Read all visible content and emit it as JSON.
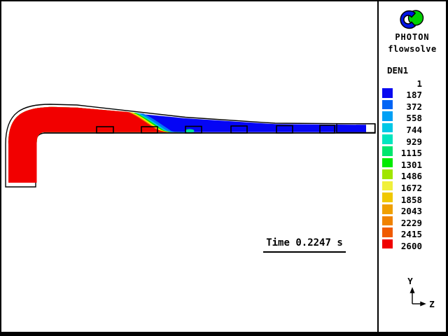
{
  "brand": {
    "line1": "PHOTON",
    "line2": "flowsolve"
  },
  "legend": {
    "title": "DEN1",
    "values": [
      "1",
      "187",
      "372",
      "558",
      "744",
      "929",
      "1115",
      "1301",
      "1486",
      "1672",
      "1858",
      "2043",
      "2229",
      "2415",
      "2600"
    ],
    "colors": [
      "#0A0AF0",
      "#0064F5",
      "#00A0F5",
      "#00C8E6",
      "#00E6BE",
      "#00E66E",
      "#00EB00",
      "#A0E600",
      "#F0F03C",
      "#F0C800",
      "#F0A000",
      "#F08200",
      "#F05A00",
      "#F00000"
    ]
  },
  "plot": {
    "time_label": "Time 0.2247 s",
    "fluid_high_color": "#F20000",
    "fluid_low_color": "#0505F5",
    "interface_colors": {
      "lightblue": "#0078F5",
      "cyan": "#00C8E6",
      "green": "#00E600",
      "yellow": "#F0F000",
      "orange": "#F08200",
      "blob": "#00DC96"
    },
    "wall_color": "#000000"
  },
  "axes": {
    "vertical": "Y",
    "horizontal": "Z"
  },
  "logo": {
    "blue": "#0014E6",
    "green": "#00D200"
  }
}
